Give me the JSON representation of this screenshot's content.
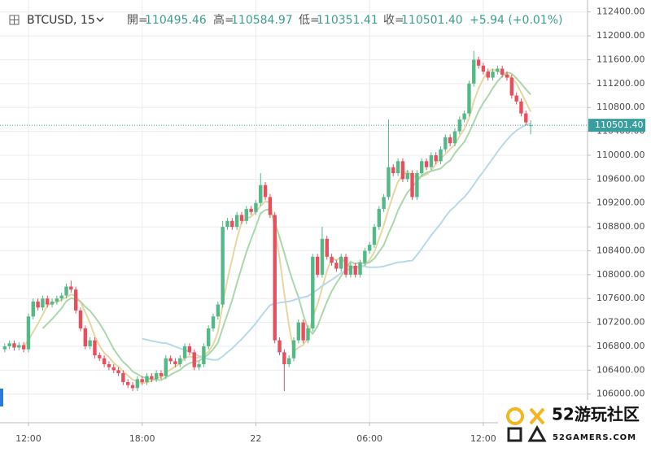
{
  "chart_data": {
    "type": "candlestick",
    "symbol": "BTCUSD, 15",
    "field_labels": [
      "開=",
      "高=",
      "低=",
      "收="
    ],
    "change": "+5.94 (+0.01%)",
    "close_label": "110501.40",
    "up_color": "#53b987",
    "down_color": "#eb4d5c",
    "grid": true,
    "xlim": [
      -1,
      123
    ],
    "ylim": [
      105520,
      112600
    ],
    "xticks": [
      {
        "value": 5,
        "label": "12:00"
      },
      {
        "value": 29,
        "label": "18:00"
      },
      {
        "value": 53,
        "label": "22"
      },
      {
        "value": 77,
        "label": "06:00"
      },
      {
        "value": 101,
        "label": "12:00"
      }
    ],
    "yticks": [
      {
        "value": 106000,
        "label": "106000.00"
      },
      {
        "value": 106400,
        "label": "106400.00"
      },
      {
        "value": 106800,
        "label": "106800.00"
      },
      {
        "value": 107200,
        "label": "107200.00"
      },
      {
        "value": 107600,
        "label": "107600.00"
      },
      {
        "value": 108000,
        "label": "108000.00"
      },
      {
        "value": 108400,
        "label": "108400.00"
      },
      {
        "value": 108800,
        "label": "108800.00"
      },
      {
        "value": 109200,
        "label": "109200.00"
      },
      {
        "value": 109600,
        "label": "109600.00"
      },
      {
        "value": 110000,
        "label": "110000.00"
      },
      {
        "value": 110400,
        "label": "110400.00"
      },
      {
        "value": 110800,
        "label": "110800.00"
      },
      {
        "value": 111200,
        "label": "111200.00"
      },
      {
        "value": 111600,
        "label": "111600.00"
      },
      {
        "value": 112000,
        "label": "112000.00"
      },
      {
        "value": 112400,
        "label": "112400.00"
      }
    ],
    "open": [
      106750,
      106800,
      106850,
      106780,
      106820,
      106750,
      107300,
      107550,
      107450,
      107600,
      107500,
      107550,
      107600,
      107650,
      107800,
      107750,
      107400,
      107100,
      106800,
      106900,
      106650,
      106600,
      106500,
      106450,
      106400,
      106350,
      106200,
      106150,
      106100,
      106250,
      106200,
      106300,
      106250,
      106350,
      106300,
      106600,
      106550,
      106500,
      106600,
      106800,
      106700,
      106450,
      106500,
      106800,
      107100,
      107300,
      107500,
      108800,
      108900,
      108800,
      109000,
      108900,
      109100,
      109050,
      109200,
      109500,
      109300,
      109000,
      106900,
      106700,
      106500,
      106600,
      106900,
      107200,
      106900,
      107100,
      108300,
      108000,
      108600,
      108300,
      108200,
      108100,
      108300,
      108000,
      108150,
      108000,
      108200,
      108400,
      108500,
      108800,
      109100,
      109300,
      109800,
      109700,
      109900,
      109600,
      109700,
      109300,
      109700,
      109900,
      109800,
      110000,
      109900,
      110100,
      110300,
      110200,
      110400,
      110600,
      110700,
      111200,
      111600,
      111500,
      111400,
      111300,
      111400,
      111450,
      111350,
      111300,
      111000,
      110900,
      110700,
      110495.46
    ],
    "high": [
      106850,
      106900,
      106900,
      106870,
      106870,
      107350,
      107600,
      107600,
      107650,
      107650,
      107600,
      107650,
      107700,
      107850,
      107900,
      107800,
      107450,
      107150,
      106950,
      106950,
      106700,
      106650,
      106550,
      106500,
      106450,
      106400,
      106250,
      106200,
      106300,
      106300,
      106350,
      106350,
      106400,
      106400,
      106650,
      106650,
      106600,
      106650,
      106850,
      106850,
      106750,
      106550,
      106850,
      107150,
      107350,
      107550,
      108900,
      108950,
      108950,
      109050,
      109050,
      109150,
      109150,
      109250,
      109700,
      109550,
      109350,
      109050,
      106950,
      106750,
      106650,
      106950,
      107250,
      107250,
      107150,
      108350,
      108350,
      108800,
      108650,
      108350,
      108250,
      108350,
      108350,
      108200,
      108200,
      108250,
      108450,
      108550,
      108850,
      109150,
      109350,
      110600,
      109850,
      109950,
      109950,
      109750,
      109750,
      109750,
      109950,
      109950,
      110050,
      110050,
      110150,
      110350,
      110350,
      110450,
      110650,
      110750,
      111250,
      111750,
      111650,
      111550,
      111450,
      111450,
      111500,
      111500,
      111400,
      111350,
      111050,
      110950,
      110750,
      110584.97
    ],
    "low": [
      106700,
      106750,
      106730,
      106730,
      106700,
      106700,
      107250,
      107400,
      107400,
      107450,
      107450,
      107500,
      107550,
      107600,
      107700,
      107350,
      107050,
      106750,
      106750,
      106600,
      106550,
      106450,
      106400,
      106350,
      106300,
      106150,
      106100,
      106050,
      106050,
      106150,
      106150,
      106200,
      106200,
      106250,
      106250,
      106500,
      106450,
      106450,
      106550,
      106650,
      106400,
      106400,
      106450,
      106750,
      107050,
      107250,
      107450,
      108750,
      108750,
      108750,
      108850,
      108850,
      109000,
      109000,
      109150,
      109250,
      108950,
      106850,
      106650,
      106050,
      106450,
      106550,
      106850,
      106850,
      106850,
      107050,
      107950,
      107950,
      108250,
      108150,
      108050,
      108050,
      107950,
      107950,
      107950,
      107950,
      108150,
      108350,
      108450,
      108750,
      109050,
      109250,
      109650,
      109650,
      109550,
      109550,
      109250,
      109250,
      109650,
      109750,
      109750,
      109850,
      109850,
      110050,
      110150,
      110150,
      110350,
      110550,
      110650,
      111150,
      111450,
      111350,
      111250,
      111250,
      111350,
      111300,
      111250,
      110950,
      110850,
      110650,
      110500,
      110351.41
    ],
    "close": [
      106800,
      106850,
      106780,
      106820,
      106750,
      107300,
      107550,
      107450,
      107600,
      107500,
      107550,
      107600,
      107650,
      107800,
      107750,
      107400,
      107100,
      106800,
      106900,
      106650,
      106600,
      106500,
      106450,
      106400,
      106350,
      106200,
      106150,
      106100,
      106250,
      106200,
      106300,
      106250,
      106350,
      106300,
      106600,
      106550,
      106500,
      106600,
      106800,
      106700,
      106450,
      106500,
      106800,
      107100,
      107300,
      107500,
      108800,
      108900,
      108800,
      109000,
      108900,
      109100,
      109050,
      109200,
      109500,
      109300,
      109000,
      106900,
      106700,
      106500,
      106600,
      106900,
      107200,
      106900,
      107100,
      108300,
      108000,
      108600,
      108300,
      108200,
      108100,
      108300,
      108000,
      108150,
      108000,
      108200,
      108400,
      108500,
      108800,
      109100,
      109300,
      109800,
      109700,
      109900,
      109600,
      109700,
      109300,
      109700,
      109900,
      109800,
      110000,
      109900,
      110100,
      110300,
      110200,
      110400,
      110600,
      110700,
      111200,
      111600,
      111500,
      111400,
      111300,
      111400,
      111450,
      111350,
      111300,
      111000,
      110900,
      110700,
      110550,
      110501.4
    ]
  },
  "watermark": {
    "text": "52游玩社区",
    "sub": "52GAMERS.COM"
  }
}
